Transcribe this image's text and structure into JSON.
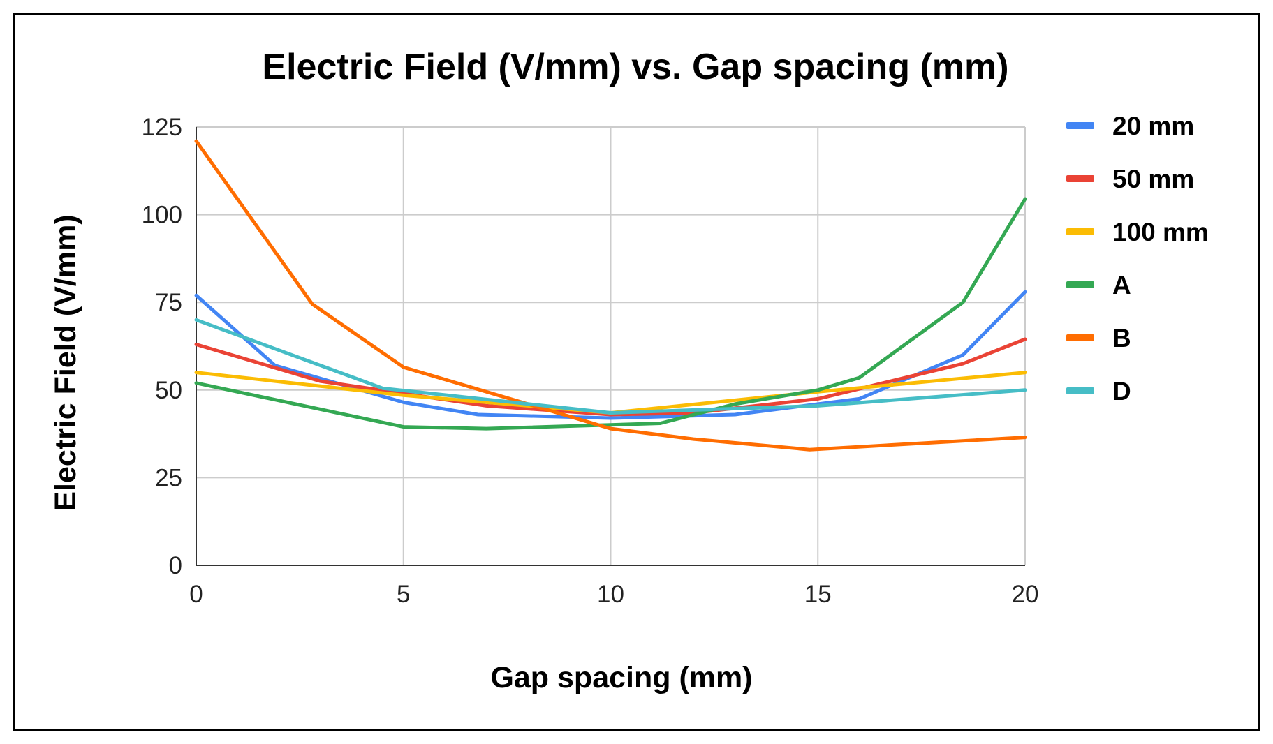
{
  "chart_data": {
    "type": "line",
    "title": "Electric Field (V/mm) vs. Gap spacing (mm)",
    "xlabel": "Gap spacing (mm)",
    "ylabel": "Electric Field (V/mm)",
    "xlim": [
      0,
      20
    ],
    "ylim": [
      0,
      125
    ],
    "xticks": [
      "0",
      "5",
      "10",
      "15",
      "20"
    ],
    "yticks": [
      "0",
      "25",
      "50",
      "75",
      "100",
      "125"
    ],
    "grid": true,
    "legend_position": "right",
    "series": [
      {
        "name": "20 mm",
        "color": "#4285f4",
        "x": [
          0,
          1.9,
          5,
          6.8,
          10,
          13,
          16,
          18.5,
          20
        ],
        "y": [
          77,
          57,
          46.5,
          43,
          42,
          43,
          47.5,
          60,
          78
        ]
      },
      {
        "name": "50 mm",
        "color": "#ea4335",
        "x": [
          0,
          3,
          7,
          10,
          12,
          15,
          18.5,
          20
        ],
        "y": [
          63,
          52.5,
          45.5,
          43,
          43.5,
          47.5,
          57.5,
          64.5
        ]
      },
      {
        "name": "100 mm",
        "color": "#fbbc04",
        "x": [
          0,
          5,
          10,
          15,
          20
        ],
        "y": [
          55,
          48.5,
          43.5,
          49.5,
          55
        ]
      },
      {
        "name": "A",
        "color": "#34a853",
        "x": [
          0,
          5,
          7,
          11.2,
          13,
          15,
          16,
          18.5,
          20
        ],
        "y": [
          52,
          39.5,
          39,
          40.5,
          46,
          50,
          53.5,
          75,
          104.5
        ]
      },
      {
        "name": "B",
        "color": "#ff6d01",
        "x": [
          0,
          2.8,
          5,
          10,
          12,
          14.8,
          20
        ],
        "y": [
          121,
          74.5,
          56.5,
          39,
          36,
          33,
          36.5
        ]
      },
      {
        "name": "D",
        "color": "#46bdc6",
        "x": [
          0,
          4.5,
          10,
          15,
          20
        ],
        "y": [
          70,
          50.5,
          43.5,
          45.5,
          50
        ]
      }
    ]
  }
}
